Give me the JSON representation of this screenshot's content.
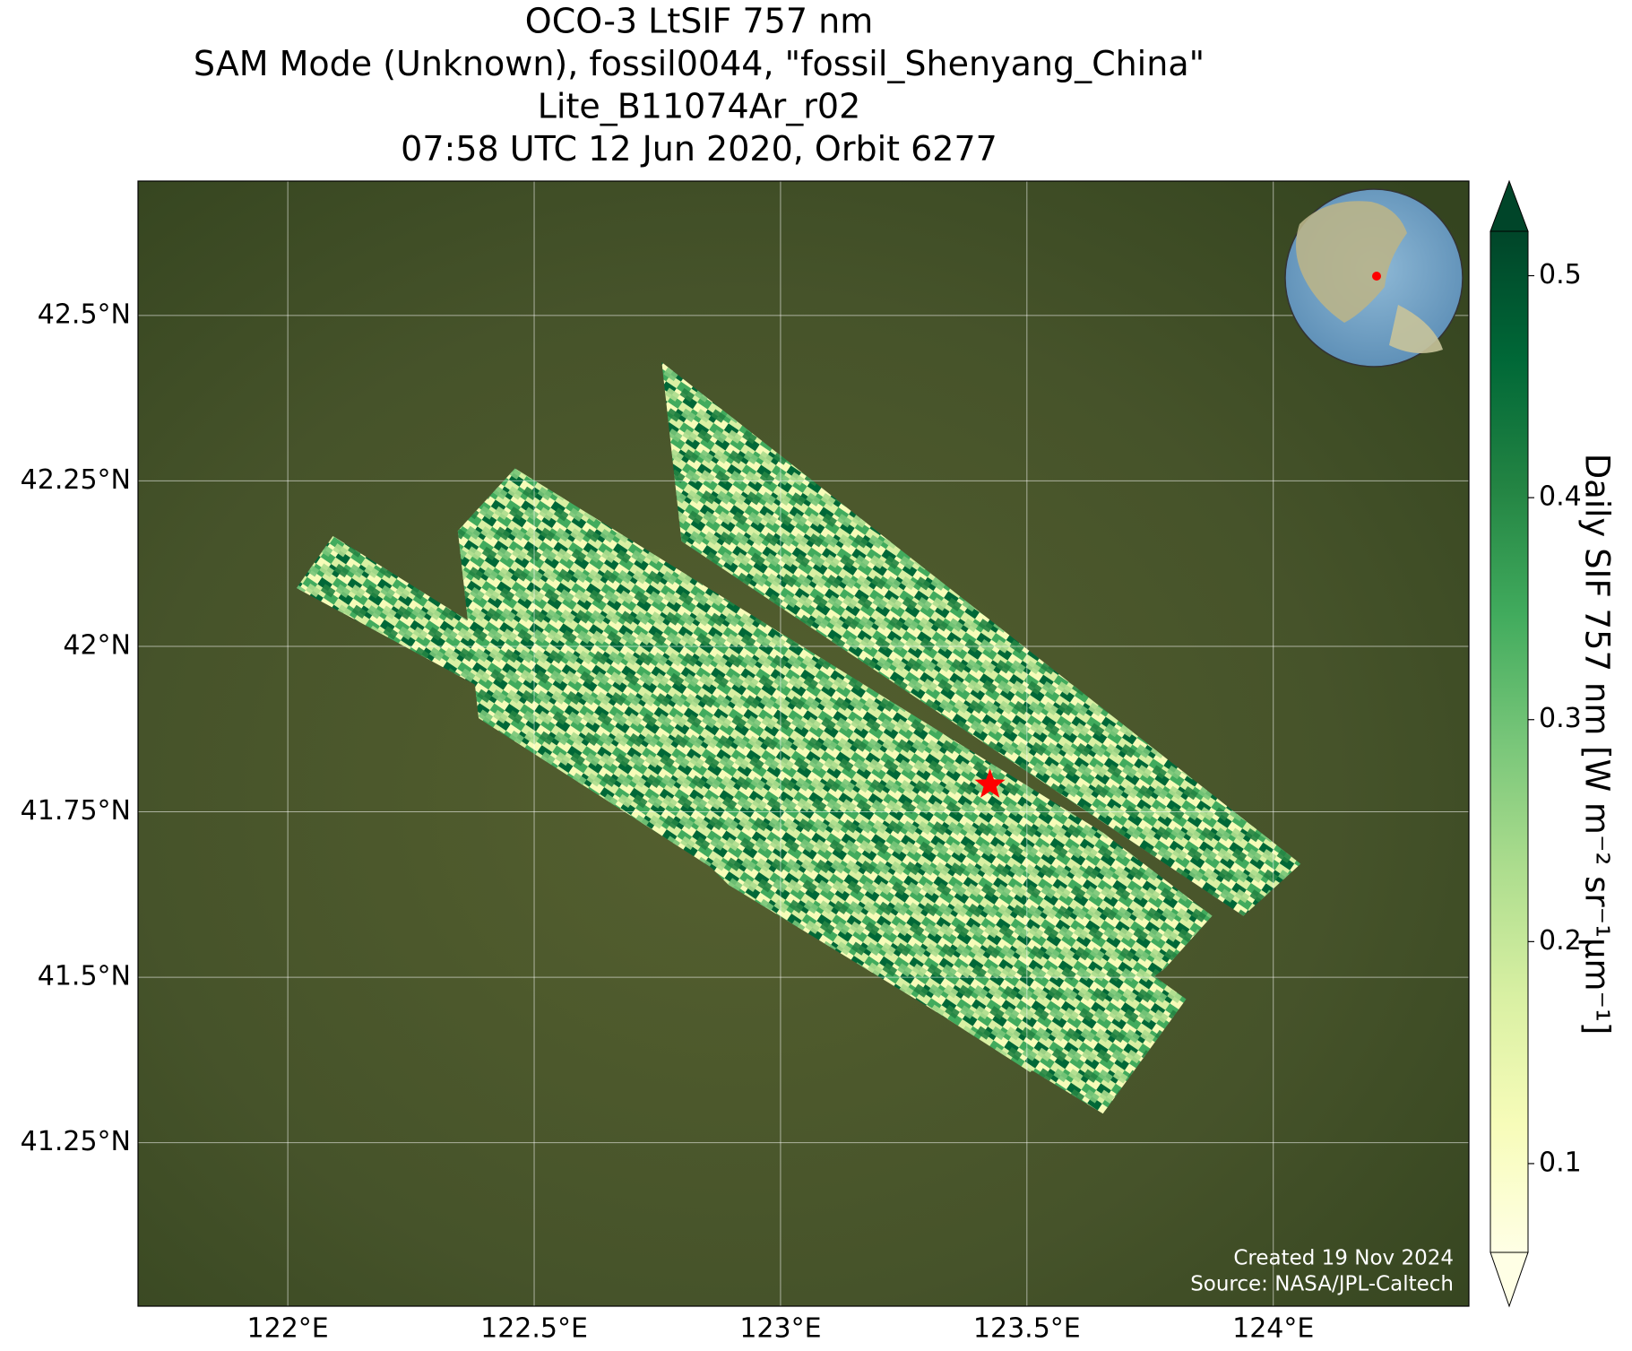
{
  "map": {
    "title": [
      "OCO-3 LtSIF 757 nm",
      "SAM Mode (Unknown), fossil0044, \"fossil_Shenyang_China\"",
      "Lite_B11074Ar_r02",
      "07:58 UTC 12 Jun 2020, Orbit 6277"
    ],
    "xlim": [
      121.696,
      124.397
    ],
    "ylim": [
      41.003,
      42.703
    ],
    "xticks": [
      {
        "value": 122,
        "label": "122°E"
      },
      {
        "value": 122.5,
        "label": "122.5°E"
      },
      {
        "value": 123,
        "label": "123°E"
      },
      {
        "value": 123.5,
        "label": "123.5°E"
      },
      {
        "value": 124,
        "label": "124°E"
      }
    ],
    "yticks": [
      {
        "value": 42.5,
        "label": "42.5°N"
      },
      {
        "value": 42.25,
        "label": "42.25°N"
      },
      {
        "value": 42,
        "label": "42°N"
      },
      {
        "value": 41.75,
        "label": "41.75°N"
      },
      {
        "value": 41.5,
        "label": "41.5°N"
      },
      {
        "value": 41.25,
        "label": "41.25°N"
      }
    ],
    "target": {
      "lon": 123.425,
      "lat": 41.791
    },
    "colorbar": {
      "label": "Daily SIF 757 nm [W m⁻² sr⁻¹μm⁻¹]",
      "clim": [
        0.06,
        0.52
      ],
      "ticks": [
        0.1,
        0.2,
        0.3,
        0.4,
        0.5
      ],
      "colormap": "YlGn"
    },
    "credits": [
      "Created 19 Nov 2024",
      "Source: NASA/JPL-Caltech"
    ]
  }
}
